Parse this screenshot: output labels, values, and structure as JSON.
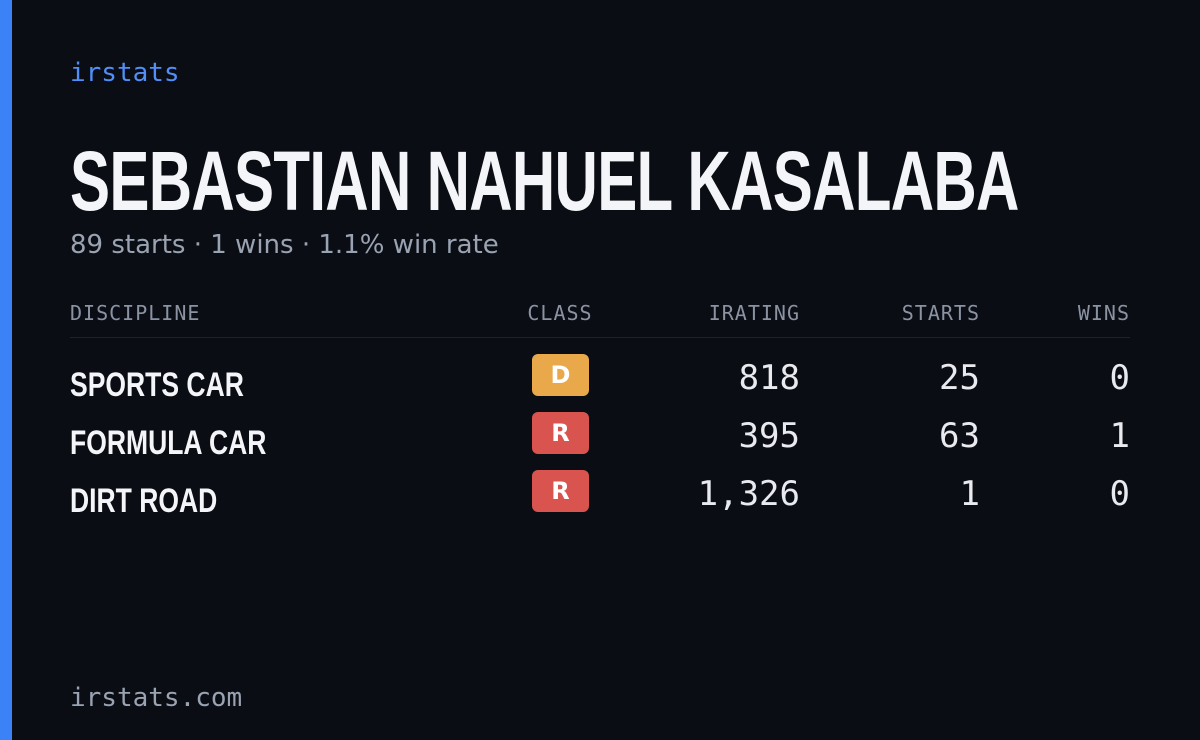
{
  "brand": "irstats",
  "title": "SEBASTIAN NAHUEL KASALABA",
  "subtitle": "89 starts · 1 wins · 1.1% win rate",
  "table": {
    "headers": [
      "DISCIPLINE",
      "CLASS",
      "IRATING",
      "STARTS",
      "WINS"
    ],
    "rows": [
      [
        "SPORTS CAR",
        "D",
        "818",
        "25",
        "0"
      ],
      [
        "FORMULA CAR",
        "R",
        "395",
        "63",
        "1"
      ],
      [
        "DIRT ROAD",
        "R",
        "1,326",
        "1",
        "0"
      ]
    ],
    "class_colors": {
      "D": "#e9a94b",
      "R": "#d9534f"
    }
  },
  "footer": "irstats.com"
}
